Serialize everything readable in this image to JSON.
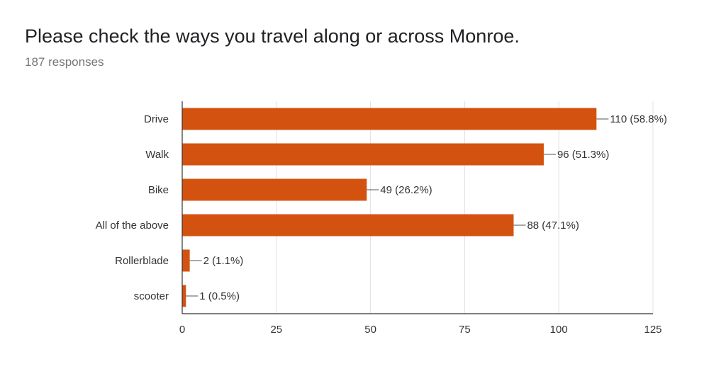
{
  "header": {
    "title": "Please check the ways you travel along or across Monroe.",
    "responses": "187 responses"
  },
  "colors": {
    "bar": "#d4520f",
    "grid": "#e0e0e0",
    "axis": "#333333",
    "leader": "#555555"
  },
  "chart_data": {
    "type": "bar",
    "orientation": "horizontal",
    "title": "Please check the ways you travel along or across Monroe.",
    "subtitle": "187 responses",
    "categories": [
      "Drive",
      "Walk",
      "Bike",
      "All of the above",
      "Rollerblade",
      "scooter"
    ],
    "values": [
      110,
      96,
      49,
      88,
      2,
      1
    ],
    "data_labels": [
      "110 (58.8%)",
      "96 (51.3%)",
      "49 (26.2%)",
      "88 (47.1%)",
      "2 (1.1%)",
      "1 (0.5%)"
    ],
    "xlim": [
      0,
      125
    ],
    "xticks": [
      0,
      25,
      50,
      75,
      100,
      125
    ],
    "xlabel": "",
    "ylabel": "",
    "grid": true,
    "legend": "none"
  }
}
